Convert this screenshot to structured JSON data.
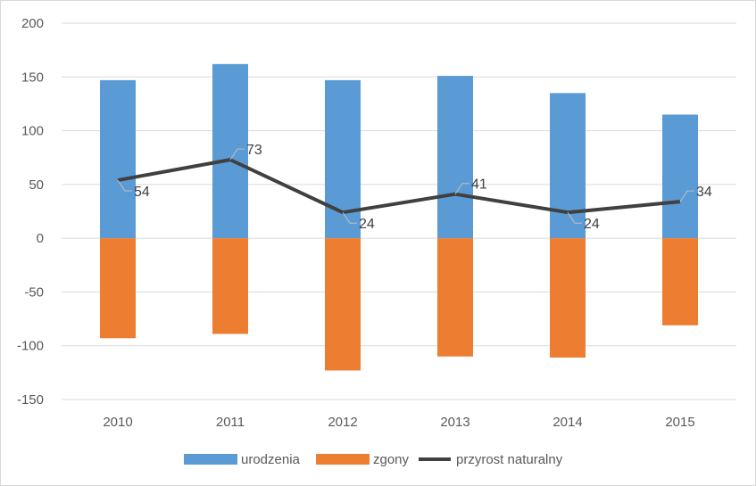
{
  "chart_data": {
    "type": "bar",
    "title": "",
    "xlabel": "",
    "ylabel": "",
    "ylim": [
      -150,
      200
    ],
    "yticks": [
      200,
      150,
      100,
      50,
      0,
      -50,
      -100,
      -150
    ],
    "grid": true,
    "categories": [
      "2010",
      "2011",
      "2012",
      "2013",
      "2014",
      "2015"
    ],
    "series": [
      {
        "name": "urodzenia",
        "type": "bar",
        "color": "#5b9bd5",
        "values": [
          147,
          162,
          147,
          151,
          135,
          115
        ]
      },
      {
        "name": "zgony",
        "type": "bar",
        "color": "#ed7d31",
        "values": [
          -93,
          -89,
          -123,
          -110,
          -111,
          -81
        ]
      },
      {
        "name": "przyrost naturalny",
        "type": "line",
        "color": "#404040",
        "values": [
          54,
          73,
          24,
          41,
          24,
          34
        ],
        "data_labels": [
          "54",
          "73",
          "24",
          "41",
          "24",
          "34"
        ]
      }
    ],
    "legend_position": "bottom"
  }
}
